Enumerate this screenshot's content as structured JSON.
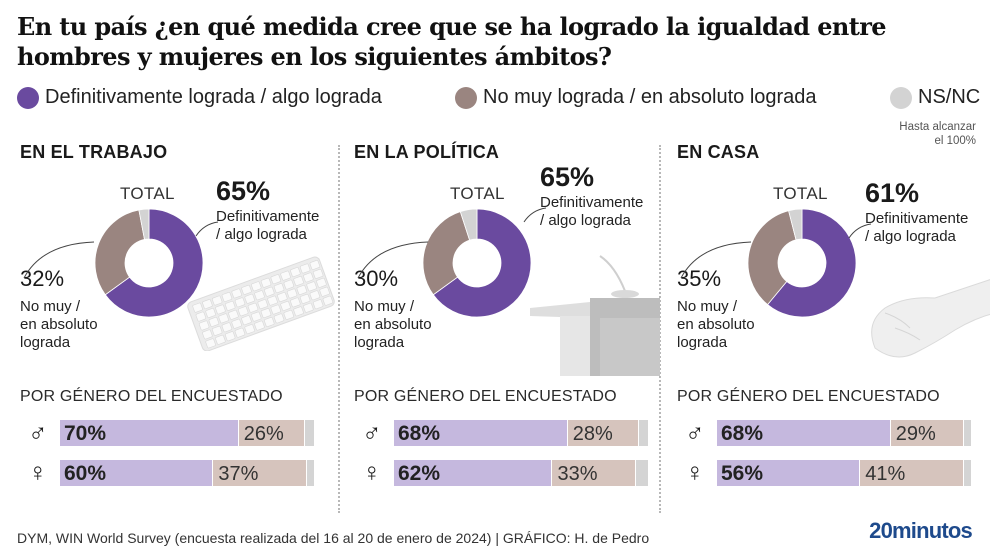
{
  "title": "En tu país ¿en qué medida cree que se ha logrado la igualdad entre hombres y mujeres en los siguientes ámbitos?",
  "colors": {
    "achieved": "#6a4a9f",
    "not_achieved": "#9a8580",
    "nsnc": "#d3d3d3",
    "achieved_light": "#c5b8de",
    "not_achieved_light": "#d6c4bd",
    "brand": "#1e4a8c"
  },
  "legend": {
    "items": [
      {
        "label": "Definitivamente lograda / algo lograda",
        "color": "#6a4a9f"
      },
      {
        "label": "No muy lograda / en absoluto lograda",
        "color": "#9a8580"
      },
      {
        "label": "NS/NC",
        "color": "#d3d3d3"
      }
    ],
    "note_line1": "Hasta alcanzar",
    "note_line2": "el 100%"
  },
  "total_label": "TOTAL",
  "desc_achieved_line1": "Definitivamente",
  "desc_achieved_line2": "/ algo lograda",
  "desc_not_line1": "No muy /",
  "desc_not_line2": "en absoluto",
  "desc_not_line3": "lograda",
  "gender_title": "POR GÉNERO DEL ENCUESTADO",
  "male_symbol": "♂",
  "female_symbol": "♀",
  "chart_data": [
    {
      "type": "pie",
      "title": "EN EL TRABAJO",
      "total": {
        "achieved": 65,
        "not_achieved": 32,
        "nsnc": 3
      },
      "total_labels": {
        "achieved": "65%",
        "not_achieved": "32%"
      },
      "by_gender": [
        {
          "gender": "male",
          "achieved": 70,
          "not_achieved": 26,
          "nsnc": 4,
          "achieved_label": "70%",
          "not_achieved_label": "26%"
        },
        {
          "gender": "female",
          "achieved": 60,
          "not_achieved": 37,
          "nsnc": 3,
          "achieved_label": "60%",
          "not_achieved_label": "37%"
        }
      ]
    },
    {
      "type": "pie",
      "title": "EN LA POLÍTICA",
      "total": {
        "achieved": 65,
        "not_achieved": 30,
        "nsnc": 5
      },
      "total_labels": {
        "achieved": "65%",
        "not_achieved": "30%"
      },
      "by_gender": [
        {
          "gender": "male",
          "achieved": 68,
          "not_achieved": 28,
          "nsnc": 4,
          "achieved_label": "68%",
          "not_achieved_label": "28%"
        },
        {
          "gender": "female",
          "achieved": 62,
          "not_achieved": 33,
          "nsnc": 5,
          "achieved_label": "62%",
          "not_achieved_label": "33%"
        }
      ]
    },
    {
      "type": "pie",
      "title": "EN CASA",
      "total": {
        "achieved": 61,
        "not_achieved": 35,
        "nsnc": 4
      },
      "total_labels": {
        "achieved": "61%",
        "not_achieved": "35%"
      },
      "by_gender": [
        {
          "gender": "male",
          "achieved": 68,
          "not_achieved": 29,
          "nsnc": 3,
          "achieved_label": "68%",
          "not_achieved_label": "29%"
        },
        {
          "gender": "female",
          "achieved": 56,
          "not_achieved": 41,
          "nsnc": 3,
          "achieved_label": "56%",
          "not_achieved_label": "41%"
        }
      ]
    }
  ],
  "footer": {
    "source": "DYM, WIN World Survey (encuesta realizada del 16 al 20 de enero de 2024)  |  GRÁFICO: H. de Pedro",
    "brand": "20minutos"
  }
}
